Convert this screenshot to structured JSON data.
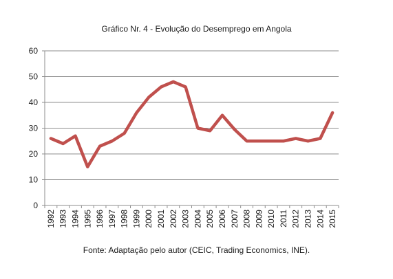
{
  "chart_data": {
    "type": "line",
    "title": "Gráfico Nr. 4 - Evolução do Desemprego em Angola",
    "source": "Fonte: Adaptação pelo autor  (CEIC, Trading Economics, INE).",
    "x": [
      "1992",
      "1993",
      "1994",
      "1995",
      "1996",
      "1997",
      "1998",
      "1999",
      "2000",
      "2001",
      "2002",
      "2003",
      "2004",
      "2005",
      "2006",
      "2007",
      "2008",
      "2009",
      "2010",
      "2011",
      "2012",
      "2013",
      "2014",
      "2015"
    ],
    "series": [
      {
        "values": [
          26,
          24,
          27,
          15,
          23,
          25,
          28,
          36,
          42,
          46,
          48,
          46,
          30,
          29,
          35,
          29.5,
          25,
          25,
          25,
          25,
          26,
          25,
          26,
          36
        ],
        "color": "#c0504d"
      }
    ],
    "ylim": [
      0,
      60
    ],
    "yticks": [
      0,
      10,
      20,
      30,
      40,
      50,
      60
    ],
    "grid": true,
    "legend": "none"
  }
}
